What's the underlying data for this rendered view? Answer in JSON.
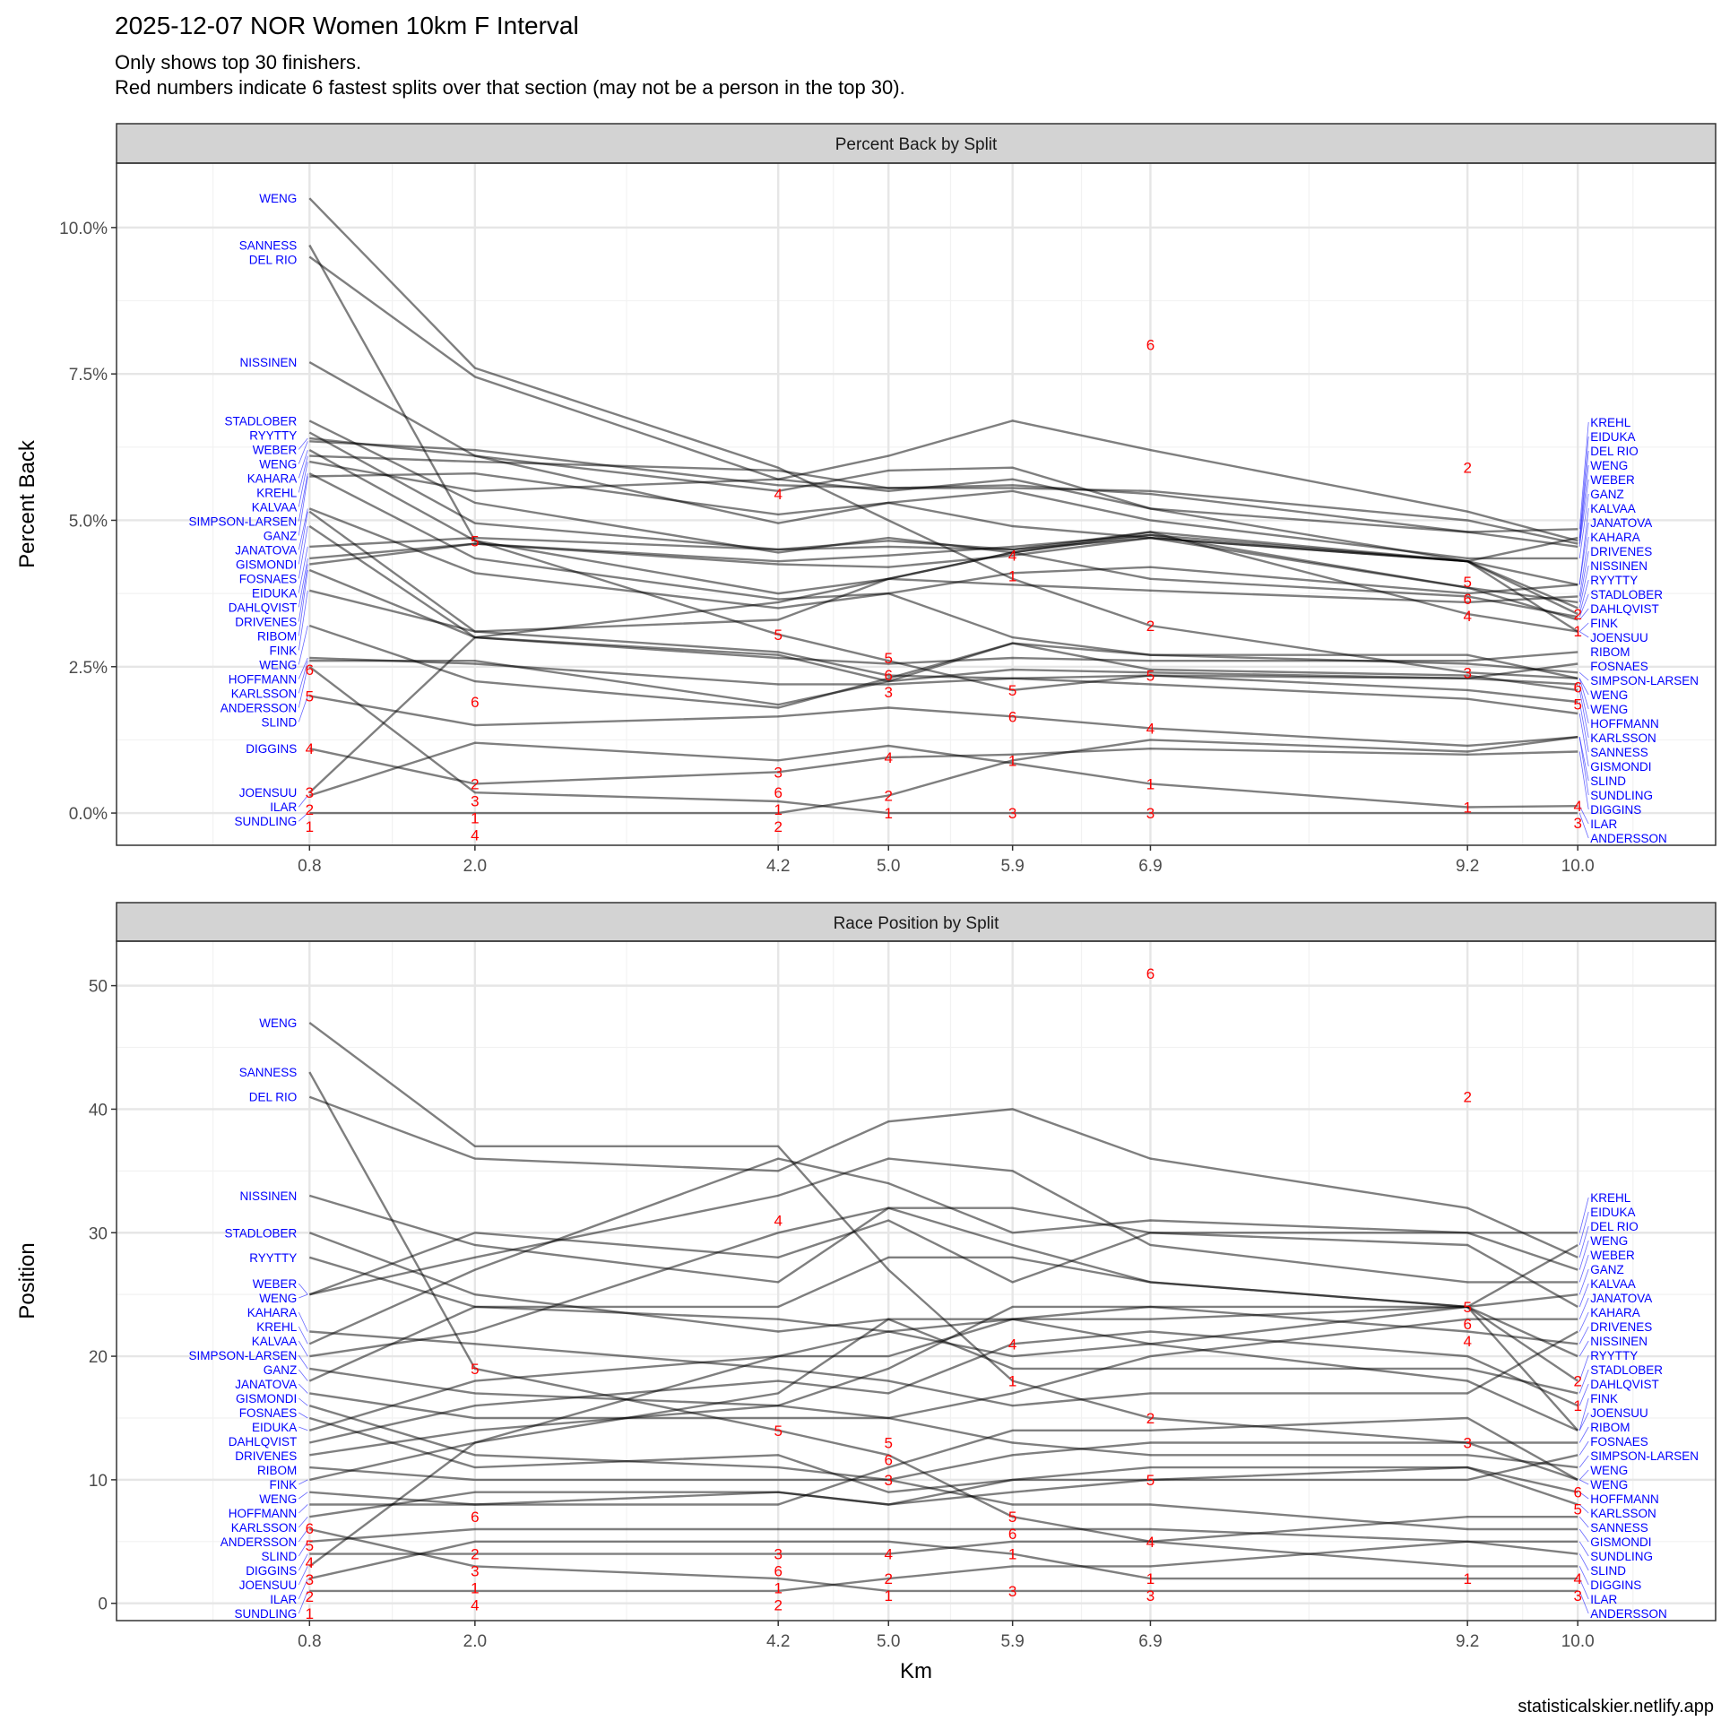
{
  "chart_data": {
    "type": "line",
    "title": "2025-12-07 NOR Women 10km F Interval",
    "subtitle_lines": [
      "Only shows top 30 finishers.",
      "Red numbers indicate 6 fastest splits over that section (may not be a person in the top 30)."
    ],
    "caption": "statisticalskier.netlify.app",
    "xlabel": "Km",
    "x": [
      0.8,
      2.0,
      4.2,
      5.0,
      5.9,
      6.9,
      9.2,
      10.0
    ],
    "x_tick_labels": [
      "0.8",
      "2.0",
      "4.2",
      "5.0",
      "5.9",
      "6.9",
      "9.2",
      "10.0"
    ],
    "xlim": [
      -0.6,
      11.0
    ],
    "grid": true,
    "colors": {
      "line": "#000000",
      "name_label": "#0000ff",
      "rank_label": "#ff0000",
      "strip": "#d3d3d3"
    },
    "panels": [
      {
        "key": "pct",
        "strip": "Percent Back by Split",
        "ylabel": "Percent Back",
        "ylim": [
          -0.55,
          11.1
        ],
        "y_ticks": [
          0,
          2.5,
          5,
          7.5,
          10
        ],
        "y_tick_labels": [
          "0.0%",
          "2.5%",
          "5.0%",
          "7.5%",
          "10.0%"
        ],
        "y_minor": [
          1.25,
          3.75,
          6.25,
          8.75
        ]
      },
      {
        "key": "pos",
        "strip": "Race Position by Split",
        "ylabel": "Position",
        "ylim": [
          -1.4,
          53.6
        ],
        "y_ticks": [
          0,
          10,
          20,
          30,
          40,
          50
        ],
        "y_tick_labels": [
          "0",
          "10",
          "20",
          "30",
          "40",
          "50"
        ],
        "y_minor": [
          5,
          15,
          25,
          35,
          45
        ]
      }
    ],
    "series": [
      {
        "name": "WENG",
        "pct": [
          10.5,
          7.6,
          5.9,
          5.0,
          4.0,
          3.2,
          2.4,
          2.3
        ],
        "pos": [
          47,
          37,
          37,
          27,
          18,
          15,
          13,
          10
        ]
      },
      {
        "name": "SANNESS",
        "pct": [
          9.7,
          4.65,
          3.05,
          2.6,
          2.1,
          2.35,
          2.1,
          1.9
        ],
        "pos": [
          43,
          19,
          14,
          12,
          7,
          5,
          7,
          7
        ]
      },
      {
        "name": "DEL RIO",
        "pct": [
          9.5,
          7.45,
          5.7,
          6.1,
          6.7,
          6.2,
          5.15,
          4.65
        ],
        "pos": [
          41,
          36,
          35,
          39,
          40,
          36,
          32,
          28
        ]
      },
      {
        "name": "NISSINEN",
        "pct": [
          7.7,
          6.1,
          4.95,
          5.3,
          4.9,
          4.7,
          4.3,
          3.5
        ],
        "pos": [
          33,
          29,
          26,
          32,
          29,
          26,
          24,
          20
        ]
      },
      {
        "name": "STADLOBER",
        "pct": [
          6.7,
          5.3,
          4.45,
          4.7,
          4.45,
          4.0,
          3.7,
          3.35
        ],
        "pos": [
          30,
          25,
          22,
          23,
          19,
          19,
          19,
          17
        ]
      },
      {
        "name": "RYYTTY",
        "pct": [
          6.5,
          4.95,
          4.5,
          4.55,
          4.5,
          4.8,
          4.3,
          3.4
        ],
        "pos": [
          28,
          24,
          23,
          22,
          20,
          21,
          24,
          18
        ]
      },
      {
        "name": "WEBER",
        "pct": [
          6.4,
          6.1,
          5.5,
          5.85,
          5.9,
          5.2,
          4.8,
          4.55
        ],
        "pos": [
          25,
          28,
          33,
          36,
          35,
          29,
          26,
          26
        ]
      },
      {
        "name": "WENG",
        "pct": [
          6.35,
          6.2,
          5.6,
          5.55,
          5.55,
          5.5,
          5.0,
          4.6
        ],
        "pos": [
          25,
          30,
          28,
          31,
          26,
          30,
          30,
          27
        ]
      },
      {
        "name": "KAHARA",
        "pct": [
          6.2,
          4.65,
          3.75,
          4.0,
          3.9,
          3.8,
          3.6,
          3.7
        ],
        "pos": [
          22,
          21,
          19,
          18,
          16,
          17,
          17,
          22
        ]
      },
      {
        "name": "KREHL",
        "pct": [
          6.1,
          6.0,
          5.85,
          5.55,
          5.6,
          5.45,
          4.8,
          4.85
        ],
        "pos": [
          21,
          27,
          36,
          34,
          30,
          31,
          30,
          30
        ]
      },
      {
        "name": "KALVAA",
        "pct": [
          6.0,
          5.5,
          5.7,
          5.5,
          5.7,
          5.2,
          4.3,
          3.9
        ],
        "pos": [
          20,
          22,
          30,
          32,
          32,
          30,
          29,
          24
        ]
      },
      {
        "name": "SIMPSON-LARSEN",
        "pct": [
          5.8,
          4.35,
          3.65,
          3.75,
          3.0,
          2.7,
          2.55,
          2.4
        ],
        "pos": [
          19,
          17,
          16,
          15,
          13,
          12,
          12,
          11
        ]
      },
      {
        "name": "GANZ",
        "pct": [
          5.75,
          5.8,
          5.1,
          5.3,
          5.5,
          5.0,
          4.35,
          4.35
        ],
        "pos": [
          18,
          24,
          24,
          28,
          28,
          26,
          24,
          25
        ]
      },
      {
        "name": "JANATOVA",
        "pct": [
          5.2,
          4.1,
          3.5,
          3.75,
          4.1,
          4.2,
          3.75,
          3.9
        ],
        "pos": [
          17,
          15,
          15,
          15,
          17,
          20,
          23,
          23
        ]
      },
      {
        "name": "GISMONDI",
        "pct": [
          5.15,
          3.1,
          2.75,
          2.35,
          2.3,
          2.2,
          1.95,
          1.7
        ],
        "pos": [
          16,
          12,
          11,
          10,
          8,
          8,
          6,
          6
        ]
      },
      {
        "name": "FOSNAES",
        "pct": [
          4.9,
          3.0,
          2.7,
          2.25,
          2.45,
          2.4,
          2.3,
          2.55
        ],
        "pos": [
          15,
          11,
          12,
          9,
          10,
          10,
          10,
          12
        ]
      },
      {
        "name": "EIDUKA",
        "pct": [
          4.55,
          4.7,
          4.5,
          4.65,
          4.5,
          4.7,
          4.3,
          4.7
        ],
        "pos": [
          14,
          18,
          20,
          20,
          23,
          23,
          24,
          29
        ]
      },
      {
        "name": "DAHLQVIST",
        "pct": [
          4.35,
          4.6,
          4.25,
          4.2,
          4.4,
          4.7,
          3.85,
          3.3
        ],
        "pos": [
          13,
          16,
          18,
          17,
          21,
          22,
          20,
          16
        ]
      },
      {
        "name": "DRIVENES",
        "pct": [
          4.25,
          4.6,
          4.3,
          4.4,
          4.55,
          4.75,
          3.85,
          3.6
        ],
        "pos": [
          12,
          14,
          16,
          19,
          24,
          24,
          22,
          21
        ]
      },
      {
        "name": "RIBOM",
        "pct": [
          4.15,
          3.0,
          2.65,
          2.55,
          2.65,
          2.6,
          2.6,
          2.75
        ],
        "pos": [
          11,
          10,
          10,
          10,
          12,
          13,
          13,
          13
        ]
      },
      {
        "name": "FINK",
        "pct": [
          3.8,
          3.1,
          3.3,
          4.0,
          4.45,
          4.8,
          3.4,
          3.1
        ],
        "pos": [
          10,
          13,
          17,
          23,
          23,
          21,
          18,
          14
        ]
      },
      {
        "name": "WENG",
        "pct": [
          3.2,
          2.25,
          1.8,
          2.3,
          2.9,
          2.7,
          2.7,
          2.3
        ],
        "pos": [
          9,
          8,
          8,
          11,
          14,
          14,
          15,
          10
        ]
      },
      {
        "name": "HOFFMANN",
        "pct": [
          2.65,
          2.55,
          2.2,
          2.2,
          2.3,
          2.35,
          2.3,
          2.2
        ],
        "pos": [
          8,
          8,
          9,
          8,
          9,
          10,
          11,
          9
        ]
      },
      {
        "name": "KARLSSON",
        "pct": [
          2.6,
          2.6,
          1.85,
          2.25,
          2.9,
          2.45,
          2.35,
          2.1
        ],
        "pos": [
          7,
          9,
          9,
          8,
          10,
          11,
          11,
          8
        ]
      },
      {
        "name": "ANDERSSON",
        "pct": [
          2.5,
          0.35,
          0.2,
          0.0,
          0.0,
          0.0,
          0.0,
          0.0
        ],
        "pos": [
          6,
          3,
          2,
          1,
          1,
          1,
          1,
          1
        ]
      },
      {
        "name": "SLIND",
        "pct": [
          2.0,
          1.5,
          1.65,
          1.8,
          1.65,
          1.45,
          1.15,
          1.3
        ],
        "pos": [
          5,
          6,
          6,
          6,
          6,
          6,
          5,
          4
        ]
      },
      {
        "name": "DIGGINS",
        "pct": [
          1.1,
          0.5,
          0.7,
          0.95,
          1.0,
          1.1,
          1.0,
          1.05
        ],
        "pos": [
          4,
          4,
          4,
          4,
          5,
          5,
          3,
          3
        ]
      },
      {
        "name": "JOENSUU",
        "pct": [
          0.35,
          3.0,
          3.6,
          4.0,
          4.45,
          4.75,
          4.3,
          3.1
        ],
        "pos": [
          3,
          13,
          20,
          22,
          23,
          24,
          24,
          14
        ]
      },
      {
        "name": "ILAR",
        "pct": [
          0.3,
          1.2,
          0.9,
          1.15,
          0.85,
          0.5,
          0.1,
          0.12
        ],
        "pos": [
          2,
          5,
          5,
          5,
          4,
          2,
          2,
          2
        ]
      },
      {
        "name": "SUNDLING",
        "pct": [
          0.0,
          0.0,
          0.0,
          0.3,
          0.9,
          1.25,
          1.05,
          1.3
        ],
        "pos": [
          1,
          1,
          1,
          2,
          3,
          3,
          5,
          5
        ]
      }
    ],
    "fastest_split_ranks": [
      {
        "x": 0.8,
        "ranks": [
          "1",
          "2",
          "3",
          "4",
          "5",
          "6"
        ],
        "pct": [
          0,
          0.3,
          0.35,
          1.1,
          2.0,
          2.45
        ],
        "pos": [
          1,
          2,
          3,
          4,
          5,
          6
        ]
      },
      {
        "x": 2.0,
        "ranks": [
          "4",
          "1",
          "3",
          "2",
          "6",
          "5"
        ],
        "pct": [
          0,
          0.1,
          0.35,
          0.5,
          1.9,
          4.65
        ],
        "pos": [
          1,
          2,
          3,
          4,
          7,
          19
        ]
      },
      {
        "x": 4.2,
        "ranks": [
          "2",
          "1",
          "6",
          "3",
          "5",
          "4"
        ],
        "pct": [
          0,
          0.2,
          0.35,
          0.7,
          3.05,
          5.45
        ],
        "pos": [
          1,
          2,
          3,
          4,
          14,
          31
        ]
      },
      {
        "x": 5.0,
        "ranks": [
          "1",
          "2",
          "4",
          "3",
          "6",
          "5"
        ],
        "pct": [
          0,
          0.3,
          0.95,
          2.35,
          2.45,
          2.65
        ],
        "pos": [
          1,
          2,
          4,
          10,
          12,
          13
        ]
      },
      {
        "x": 5.9,
        "ranks": [
          "3",
          "1",
          "6",
          "5",
          "1",
          "4"
        ],
        "pct": [
          0,
          0.9,
          1.65,
          2.1,
          4.05,
          4.4
        ],
        "pos": [
          1,
          4,
          6,
          7,
          18,
          21
        ]
      },
      {
        "x": 6.9,
        "ranks": [
          "3",
          "1",
          "4",
          "5",
          "2",
          "6"
        ],
        "pct": [
          0,
          0.5,
          1.45,
          2.35,
          3.2,
          8.0
        ],
        "pos": [
          1,
          2,
          5,
          10,
          15,
          51
        ]
      },
      {
        "x": 9.2,
        "ranks": [
          "1",
          "3",
          "4",
          "6",
          "5",
          "2"
        ],
        "pct": [
          0.1,
          2.4,
          3.75,
          3.85,
          3.95,
          5.9
        ],
        "pos": [
          2,
          13,
          22,
          23,
          24,
          41
        ]
      },
      {
        "x": 10.0,
        "ranks": [
          "3",
          "4",
          "5",
          "6",
          "1",
          "2"
        ],
        "pct": [
          0,
          0.12,
          2.05,
          2.15,
          3.3,
          3.4
        ],
        "pos": [
          1,
          2,
          8,
          9,
          16,
          18
        ]
      }
    ]
  }
}
